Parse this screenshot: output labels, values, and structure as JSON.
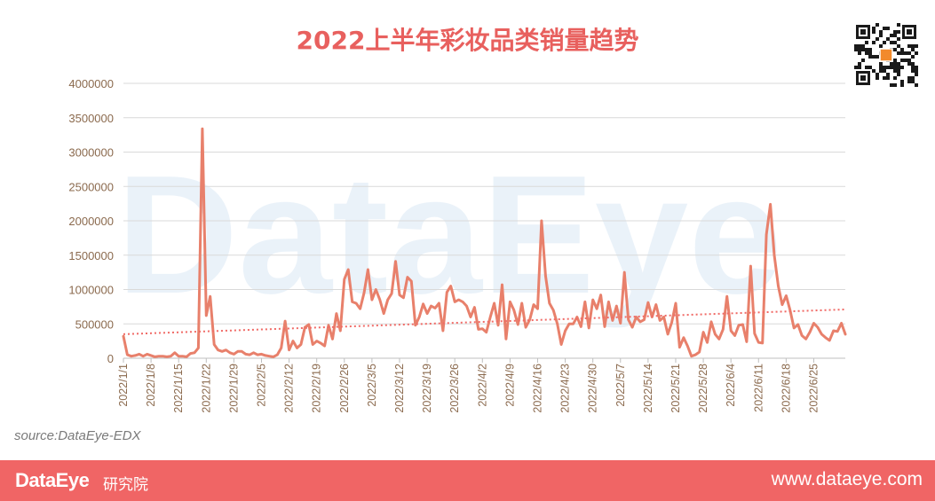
{
  "header": {
    "title": "2022上半年彩妆品类销量趋势"
  },
  "watermark": "DataEye",
  "source": "source:DataEye-EDX",
  "footer": {
    "brand": "DataEye",
    "brand_sub": "研究院",
    "site": "www.dataeye.com"
  },
  "colors": {
    "line": "#e8806b",
    "trend": "#f06a66",
    "title": "#e8605e",
    "footer": "#f06565",
    "tick": "#8b6a4e"
  },
  "chart_data": {
    "type": "line",
    "title": "2022上半年彩妆品类销量趋势",
    "xlabel": "",
    "ylabel": "",
    "ylim": [
      0,
      4000000
    ],
    "yticks": [
      0,
      500000,
      1000000,
      1500000,
      2000000,
      2500000,
      3000000,
      3500000,
      4000000
    ],
    "ytick_labels": [
      "0",
      "500000",
      "1000000",
      "1500000",
      "2000000",
      "2500000",
      "3000000",
      "3500000",
      "4000000"
    ],
    "xtick_labels": [
      "2022/1/1",
      "2022/1/8",
      "2022/1/15",
      "2022/1/22",
      "2022/1/29",
      "2022/2/5",
      "2022/2/12",
      "2022/2/19",
      "2022/2/26",
      "2022/3/5",
      "2022/3/12",
      "2022/3/19",
      "2022/3/26",
      "2022/4/2",
      "2022/4/9",
      "2022/4/16",
      "2022/4/23",
      "2022/4/30",
      "2022/5/7",
      "2022/5/14",
      "2022/5/21",
      "2022/5/28",
      "2022/6/4",
      "2022/6/11",
      "2022/6/18",
      "2022/6/25"
    ],
    "grid": true,
    "legend": "none",
    "trendline": {
      "type": "linear",
      "start": 350000,
      "end": 710000
    },
    "x_start": "2022/1/1",
    "x_end": "2022/6/30",
    "series": [
      {
        "values": [
          320000,
          50000,
          30000,
          40000,
          60000,
          30000,
          60000,
          40000,
          20000,
          30000,
          30000,
          20000,
          30000,
          80000,
          30000,
          30000,
          20000,
          70000,
          80000,
          150000,
          3340000,
          620000,
          900000,
          200000,
          120000,
          100000,
          120000,
          80000,
          60000,
          100000,
          100000,
          60000,
          50000,
          80000,
          50000,
          60000,
          40000,
          30000,
          20000,
          50000,
          150000,
          540000,
          120000,
          250000,
          150000,
          200000,
          450000,
          490000,
          200000,
          250000,
          220000,
          180000,
          480000,
          280000,
          650000,
          400000,
          1150000,
          1290000,
          820000,
          800000,
          720000,
          950000,
          1290000,
          850000,
          1000000,
          850000,
          650000,
          850000,
          940000,
          1410000,
          920000,
          880000,
          1180000,
          1120000,
          480000,
          600000,
          790000,
          650000,
          760000,
          730000,
          800000,
          400000,
          960000,
          1050000,
          820000,
          850000,
          820000,
          760000,
          600000,
          740000,
          420000,
          430000,
          380000,
          600000,
          800000,
          480000,
          1070000,
          280000,
          820000,
          700000,
          490000,
          800000,
          450000,
          560000,
          780000,
          720000,
          2000000,
          1200000,
          800000,
          700000,
          500000,
          200000,
          400000,
          500000,
          500000,
          600000,
          460000,
          820000,
          440000,
          850000,
          720000,
          920000,
          460000,
          820000,
          550000,
          760000,
          510000,
          1250000,
          560000,
          450000,
          600000,
          530000,
          560000,
          810000,
          600000,
          780000,
          550000,
          600000,
          350000,
          520000,
          800000,
          160000,
          300000,
          180000,
          30000,
          50000,
          90000,
          380000,
          230000,
          530000,
          350000,
          280000,
          420000,
          900000,
          400000,
          330000,
          480000,
          490000,
          240000,
          1340000,
          360000,
          230000,
          220000,
          1800000,
          2240000,
          1500000,
          1050000,
          780000,
          910000,
          700000,
          440000,
          490000,
          330000,
          280000,
          380000,
          510000,
          450000,
          350000,
          300000,
          260000,
          400000,
          390000,
          510000,
          350000
        ]
      }
    ]
  }
}
